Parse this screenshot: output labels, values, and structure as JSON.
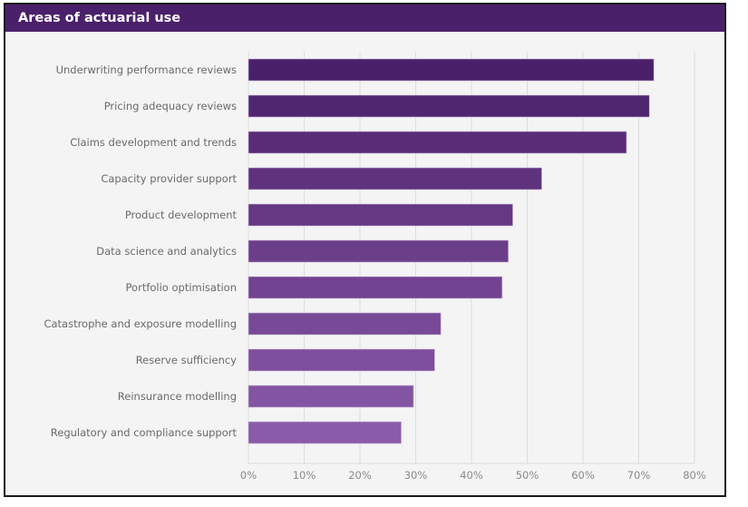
{
  "header": {
    "title": "Areas of actuarial use"
  },
  "chart_data": {
    "type": "bar",
    "orientation": "horizontal",
    "title": "Areas of actuarial use",
    "xlabel": "",
    "ylabel": "",
    "categories": [
      "Underwriting performance reviews",
      "Pricing adequacy reviews",
      "Claims development and trends",
      "Capacity provider support",
      "Product development",
      "Data science and analytics",
      "Portfolio optimisation",
      "Catastrophe and exposure modelling",
      "Reserve sufficiency",
      "Reinsurance modelling",
      "Regulatory and compliance support"
    ],
    "values": [
      72.7,
      71.9,
      67.8,
      52.6,
      47.4,
      46.6,
      45.5,
      34.5,
      33.4,
      29.6,
      27.4
    ],
    "unit": "%",
    "xlim": [
      0,
      80
    ],
    "x_ticks": [
      0,
      10,
      20,
      30,
      40,
      50,
      60,
      70,
      80
    ],
    "x_tick_labels": [
      "0%",
      "10%",
      "20%",
      "30%",
      "40%",
      "50%",
      "60%",
      "70%",
      "80%"
    ],
    "grid": true,
    "legend": "none",
    "colors": {
      "bar_start": "#4b206b",
      "bar_end": "#8a5ba8",
      "grid": "#dcdcdc",
      "header": "#4b206b",
      "background": "#f4f4f4"
    }
  }
}
